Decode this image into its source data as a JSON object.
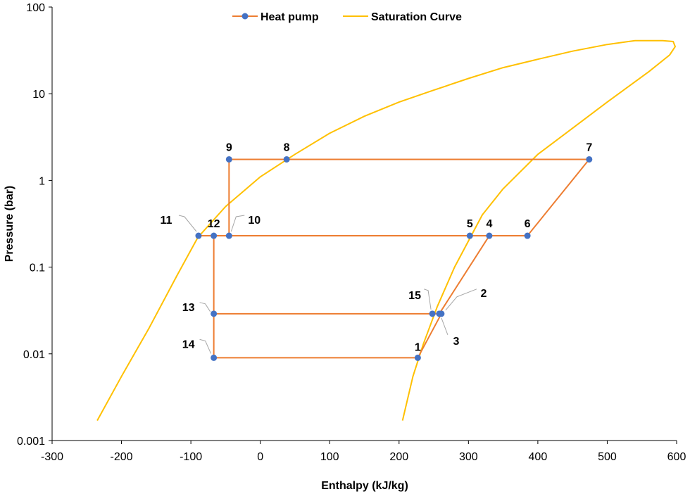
{
  "chart_data": {
    "type": "scatter",
    "xlabel": "Enthalpy (kJ/kg)",
    "ylabel": "Pressure (bar)",
    "xlim": [
      -300,
      600
    ],
    "ylim": [
      0.001,
      100
    ],
    "yscale": "log",
    "x_ticks": [
      "-300",
      "-200",
      "-100",
      "0",
      "100",
      "200",
      "300",
      "400",
      "500",
      "600"
    ],
    "y_ticks": [
      "0.001",
      "0.01",
      "0.1",
      "1",
      "10",
      "100"
    ],
    "grid": false,
    "legend_position": "top",
    "colors": {
      "heat_pump": "#ED7D31",
      "marker": "#4472C4",
      "saturation": "#FFC000",
      "leader": "#A6A6A6"
    },
    "series": [
      {
        "name": "Heat pump",
        "points": [
          {
            "label": "1",
            "x": 227,
            "y": 0.009
          },
          {
            "label": "2",
            "x": 261,
            "y": 0.029
          },
          {
            "label": "3",
            "x": 258,
            "y": 0.029
          },
          {
            "label": "4",
            "x": 330,
            "y": 0.23
          },
          {
            "label": "5",
            "x": 302,
            "y": 0.23
          },
          {
            "label": "6",
            "x": 385,
            "y": 0.23
          },
          {
            "label": "7",
            "x": 474,
            "y": 1.75
          },
          {
            "label": "8",
            "x": 38,
            "y": 1.75
          },
          {
            "label": "9",
            "x": -45,
            "y": 1.75
          },
          {
            "label": "10",
            "x": -45,
            "y": 0.23
          },
          {
            "label": "11",
            "x": -89,
            "y": 0.23
          },
          {
            "label": "12",
            "x": -67,
            "y": 0.23
          },
          {
            "label": "13",
            "x": -67,
            "y": 0.029
          },
          {
            "label": "14",
            "x": -67,
            "y": 0.009
          },
          {
            "label": "15",
            "x": 248,
            "y": 0.029
          }
        ],
        "path_order": [
          "1",
          "2",
          "3",
          "4",
          "5",
          "6",
          "7",
          "8",
          "9",
          "10",
          "11",
          "12",
          "13",
          "14"
        ],
        "extra_segments": [
          [
            "1",
            "14"
          ],
          [
            "13",
            "15"
          ],
          [
            "15",
            "3"
          ],
          [
            "5",
            "10"
          ]
        ]
      },
      {
        "name": "Saturation Curve",
        "points": [
          {
            "x": -235,
            "y": 0.0017
          },
          {
            "x": -200,
            "y": 0.0055
          },
          {
            "x": -160,
            "y": 0.02
          },
          {
            "x": -120,
            "y": 0.08
          },
          {
            "x": -90,
            "y": 0.22
          },
          {
            "x": -50,
            "y": 0.5
          },
          {
            "x": 0,
            "y": 1.1
          },
          {
            "x": 50,
            "y": 2.0
          },
          {
            "x": 100,
            "y": 3.5
          },
          {
            "x": 150,
            "y": 5.5
          },
          {
            "x": 200,
            "y": 8.0
          },
          {
            "x": 250,
            "y": 11.0
          },
          {
            "x": 300,
            "y": 15.0
          },
          {
            "x": 350,
            "y": 20.0
          },
          {
            "x": 400,
            "y": 25.0
          },
          {
            "x": 450,
            "y": 31.0
          },
          {
            "x": 500,
            "y": 37.0
          },
          {
            "x": 540,
            "y": 41.0
          },
          {
            "x": 580,
            "y": 41.0
          },
          {
            "x": 595,
            "y": 40.0
          },
          {
            "x": 598,
            "y": 35.0
          },
          {
            "x": 590,
            "y": 28.0
          },
          {
            "x": 560,
            "y": 18.0
          },
          {
            "x": 500,
            "y": 8.0
          },
          {
            "x": 450,
            "y": 4.0
          },
          {
            "x": 400,
            "y": 2.0
          },
          {
            "x": 350,
            "y": 0.8
          },
          {
            "x": 320,
            "y": 0.4
          },
          {
            "x": 300,
            "y": 0.2
          },
          {
            "x": 280,
            "y": 0.1
          },
          {
            "x": 255,
            "y": 0.035
          },
          {
            "x": 235,
            "y": 0.013
          },
          {
            "x": 220,
            "y": 0.0055
          },
          {
            "x": 205,
            "y": 0.0017
          }
        ]
      }
    ]
  }
}
